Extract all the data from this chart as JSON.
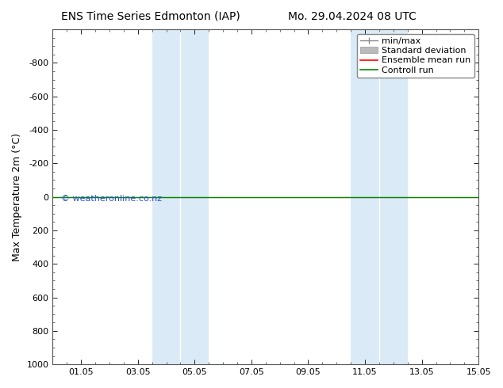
{
  "title_left": "ENS Time Series Edmonton (IAP)",
  "title_right": "Mo. 29.04.2024 08 UTC",
  "ylabel": "Max Temperature 2m (°C)",
  "ylim_top": -1000,
  "ylim_bottom": 1000,
  "yticks": [
    -800,
    -600,
    -400,
    -200,
    0,
    200,
    400,
    600,
    800,
    1000
  ],
  "xtick_labels": [
    "01.05",
    "03.05",
    "05.05",
    "07.05",
    "09.05",
    "11.05",
    "13.05",
    "15.05"
  ],
  "xtick_positions": [
    1,
    3,
    5,
    7,
    9,
    11,
    13,
    15
  ],
  "xlim": [
    0,
    15
  ],
  "blue_bands": [
    [
      3.5,
      4.5
    ],
    [
      4.5,
      5.5
    ],
    [
      10.5,
      11.5
    ],
    [
      11.5,
      12.5
    ]
  ],
  "green_line_y": 0,
  "red_line_y": 0,
  "watermark": "© weatheronline.co.nz",
  "legend_items": [
    "min/max",
    "Standard deviation",
    "Ensemble mean run",
    "Controll run"
  ],
  "legend_colors_line": [
    "#888888",
    "#bbbbbb",
    "#ff0000",
    "#008800"
  ],
  "background_color": "#ffffff",
  "plot_bg_color": "#ffffff",
  "band_color": "#daeaf7",
  "band_edge_color": "#c0d8ee",
  "title_fontsize": 10,
  "axis_label_fontsize": 9,
  "tick_fontsize": 8,
  "watermark_color": "#2255cc",
  "watermark_fontsize": 8,
  "legend_fontsize": 8
}
